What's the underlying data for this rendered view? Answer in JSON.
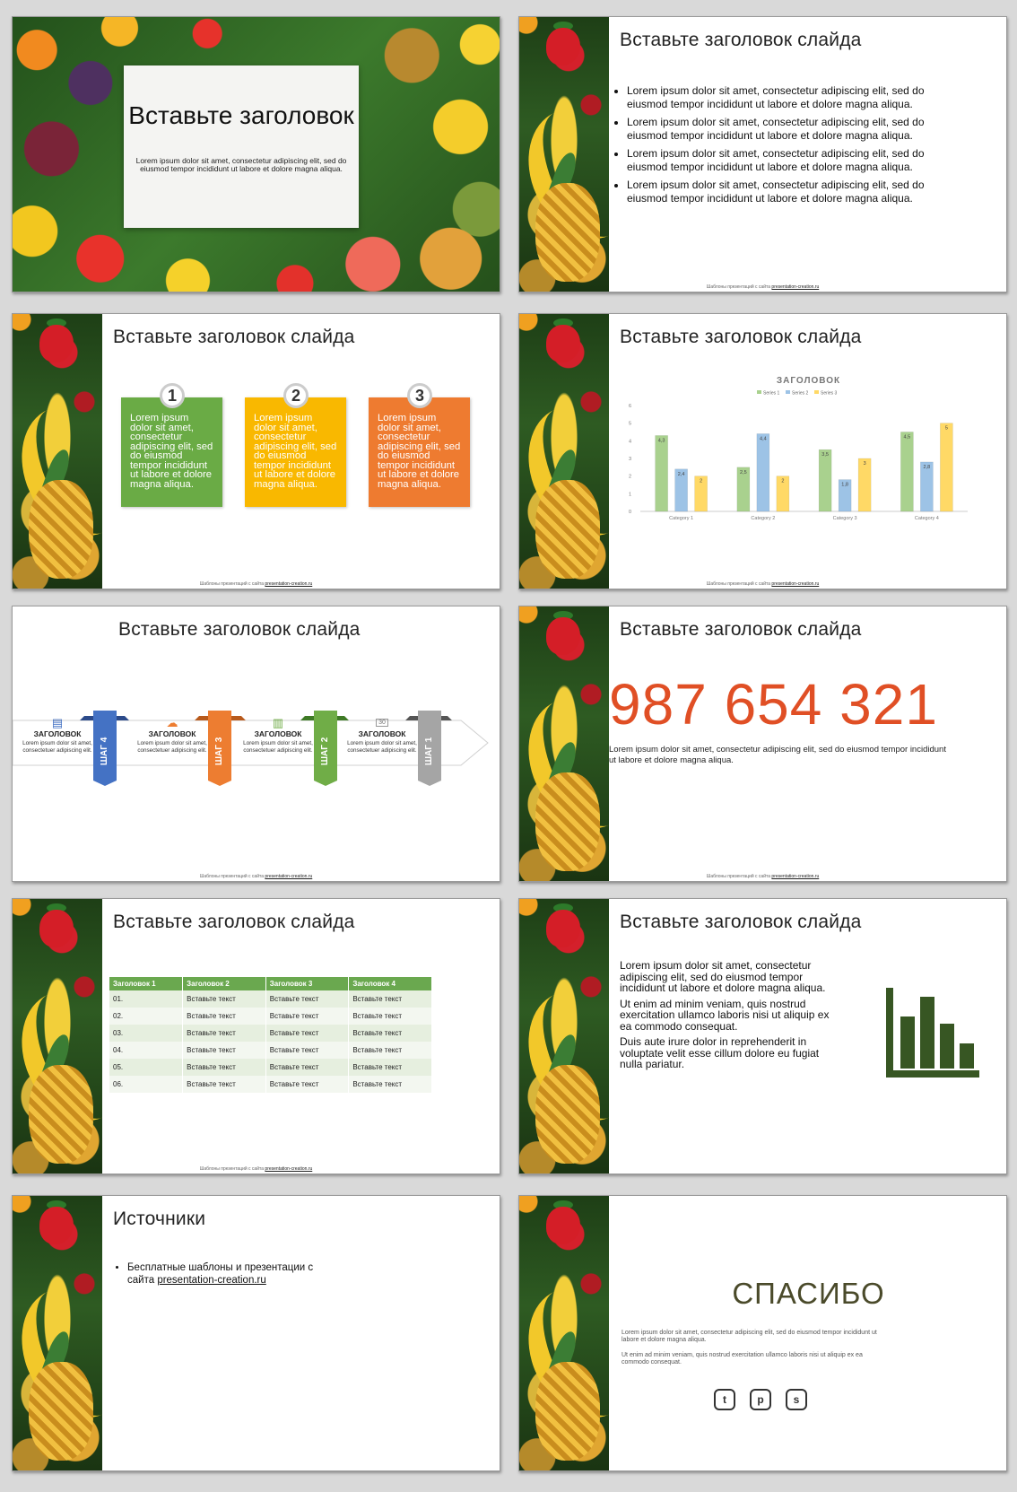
{
  "slide1": {
    "title": "Вставьте заголовок",
    "text": "Lorem ipsum dolor sit amet, consectetur adipiscing elit, sed do eiusmod tempor incididunt ut labore et dolore magna aliqua."
  },
  "slide_title": "Вставьте заголовок слайда",
  "footer": {
    "prefix": "Шаблоны презентаций с сайта ",
    "link": "presentation-creation.ru"
  },
  "slide2": {
    "bullets": [
      "Lorem ipsum dolor sit amet, consectetur adipiscing elit, sed do eiusmod tempor incididunt ut labore et dolore magna aliqua.",
      "Lorem ipsum dolor sit amet, consectetur adipiscing elit, sed do eiusmod tempor incididunt ut labore et dolore magna aliqua.",
      "Lorem ipsum dolor sit amet, consectetur adipiscing elit, sed do eiusmod tempor incididunt ut labore et dolore magna aliqua.",
      "Lorem ipsum dolor sit amet, consectetur adipiscing elit, sed do eiusmod tempor incididunt ut labore et dolore magna aliqua."
    ]
  },
  "slide3": {
    "cards": [
      {
        "num": "1",
        "text": "Lorem ipsum dolor sit amet, consectetur adipiscing elit, sed do eiusmod tempor incididunt ut labore et dolore magna aliqua.",
        "color": "#6aab45"
      },
      {
        "num": "2",
        "text": "Lorem ipsum dolor sit amet, consectetur adipiscing elit, sed do eiusmod tempor incididunt ut labore et dolore magna aliqua.",
        "color": "#f9b800"
      },
      {
        "num": "3",
        "text": "Lorem ipsum dolor sit amet, consectetur adipiscing elit, sed do eiusmod tempor incididunt ut labore et dolore magna aliqua.",
        "color": "#ee7b30"
      }
    ]
  },
  "chart_data": {
    "type": "bar",
    "title": "ЗАГОЛОВОК",
    "categories": [
      "Category 1",
      "Category 2",
      "Category 3",
      "Category 4"
    ],
    "series": [
      {
        "name": "Series 1",
        "values": [
          4.3,
          2.5,
          3.5,
          4.5
        ],
        "color": "#a9d18e"
      },
      {
        "name": "Series 2",
        "values": [
          2.4,
          4.4,
          1.8,
          2.8
        ],
        "color": "#9dc3e6"
      },
      {
        "name": "Series 3",
        "values": [
          2,
          2,
          3,
          5
        ],
        "color": "#ffd966"
      }
    ],
    "data_labels": [
      [
        "4,3",
        "2,5",
        "3,5",
        "4,5"
      ],
      [
        "2,4",
        "4,4",
        "1,8",
        "2,8"
      ],
      [
        "2",
        "2",
        "3",
        "5"
      ]
    ],
    "ylim": [
      0,
      6
    ],
    "yticks": [
      "0",
      "1",
      "2",
      "3",
      "4",
      "5",
      "6"
    ],
    "legend_position": "top",
    "grid": false
  },
  "slide5": {
    "steps": [
      {
        "title": "ЗАГОЛОВОК",
        "text": "Lorem ipsum dolor sit amet, consectetuer adipiscing elit.",
        "icon": "document-icon"
      },
      {
        "title": "ЗАГОЛОВОК",
        "text": "Lorem ipsum dolor sit amet, consectetuer adipiscing elit.",
        "icon": "cloud-icon"
      },
      {
        "title": "ЗАГОЛОВОК",
        "text": "Lorem ipsum dolor sit amet, consectetuer adipiscing elit.",
        "icon": "books-icon"
      },
      {
        "title": "ЗАГОЛОВОК",
        "text": "Lorem ipsum dolor sit amet, consectetuer adipiscing elit.",
        "icon": "calendar-icon",
        "icon_text": "30"
      }
    ],
    "ribbons": [
      {
        "label": "ШАГ 4",
        "color": "#4472c4"
      },
      {
        "label": "ШАГ 3",
        "color": "#ed7d31"
      },
      {
        "label": "ШАГ 2",
        "color": "#70ad47"
      },
      {
        "label": "ШАГ 1",
        "color": "#a5a5a5"
      }
    ]
  },
  "slide6": {
    "number": "987 654 321",
    "text": "Lorem ipsum dolor sit amet, consectetur adipiscing elit, sed do eiusmod tempor incididunt ut labore et dolore magna aliqua."
  },
  "slide7": {
    "headers": [
      "Заголовок 1",
      "Заголовок 2",
      "Заголовок 3",
      "Заголовок 4"
    ],
    "rows": [
      [
        "01.",
        "Вставьте текст",
        "Вставьте текст",
        "Вставьте текст"
      ],
      [
        "02.",
        "Вставьте текст",
        "Вставьте текст",
        "Вставьте текст"
      ],
      [
        "03.",
        "Вставьте текст",
        "Вставьте текст",
        "Вставьте текст"
      ],
      [
        "04.",
        "Вставьте текст",
        "Вставьте текст",
        "Вставьте текст"
      ],
      [
        "05.",
        "Вставьте текст",
        "Вставьте текст",
        "Вставьте текст"
      ],
      [
        "06.",
        "Вставьте текст",
        "Вставьте текст",
        "Вставьте текст"
      ]
    ]
  },
  "slide8": {
    "paragraphs": [
      "Lorem ipsum dolor sit amet, consectetur adipiscing elit, sed do eiusmod tempor incididunt ut labore et dolore magna aliqua.",
      "Ut enim ad minim veniam, quis nostrud exercitation ullamco laboris nisi ut aliquip ex ea commodo consequat.",
      "Duis aute irure dolor in reprehenderit in voluptate velit esse cillum dolore eu fugiat nulla pariatur."
    ],
    "icon": "bar-chart-icon",
    "icon_color": "#375623"
  },
  "slide9": {
    "title": "Источники",
    "item_prefix": "Бесплатные шаблоны и презентации с сайта ",
    "item_link": "presentation-creation.ru"
  },
  "slide10": {
    "title": "СПАСИБО",
    "p1": "Lorem ipsum dolor sit amet, consectetur adipiscing elit, sed do eiusmod tempor incididunt ut labore et dolore magna aliqua.",
    "p2": "Ut enim ad minim veniam, quis nostrud exercitation ullamco laboris nisi ut aliquip ex ea commodo consequat.",
    "social_icons": [
      "twitter-icon",
      "pinterest-icon",
      "skype-icon"
    ]
  }
}
